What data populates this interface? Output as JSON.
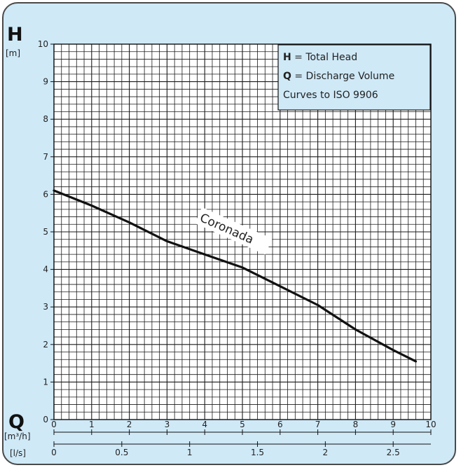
{
  "chart_data": {
    "type": "line",
    "y_symbol": "H",
    "y_unit": "[m]",
    "x_symbol": "Q",
    "x_unit_primary": "[m³/h]",
    "x_unit_secondary": "[l/s]",
    "ylim": [
      0,
      10
    ],
    "xlim": [
      0,
      10
    ],
    "y_ticks": [
      0,
      1,
      2,
      3,
      4,
      5,
      6,
      7,
      8,
      9,
      10
    ],
    "x_ticks": [
      0,
      1,
      2,
      3,
      4,
      5,
      6,
      7,
      8,
      9,
      10
    ],
    "x2_ticks": [
      0,
      0.5,
      1,
      1.5,
      2,
      2.5
    ],
    "x2_tick_labels": [
      "0",
      "0.5",
      "1",
      "1.5",
      "2",
      "2.5"
    ],
    "grid": true,
    "grid_minor_divisions": 5,
    "legend": {
      "placement": "top-right",
      "lines": [
        {
          "bold": "H",
          "text": " = Total Head"
        },
        {
          "bold": "Q",
          "text": " = Discharge Volume"
        },
        {
          "bold": "",
          "text": "Curves to ISO 9906"
        }
      ]
    },
    "series": [
      {
        "name": "Coronada",
        "x": [
          0,
          1,
          2,
          3,
          4,
          5,
          6,
          7,
          8,
          9,
          9.6
        ],
        "y": [
          6.1,
          5.7,
          5.25,
          4.75,
          4.4,
          4.05,
          3.55,
          3.05,
          2.4,
          1.85,
          1.55
        ]
      }
    ],
    "colors": {
      "background": "#cfe9f7",
      "plot": "#ffffff",
      "grid": "#1a1a1a",
      "line": "#111111"
    }
  }
}
